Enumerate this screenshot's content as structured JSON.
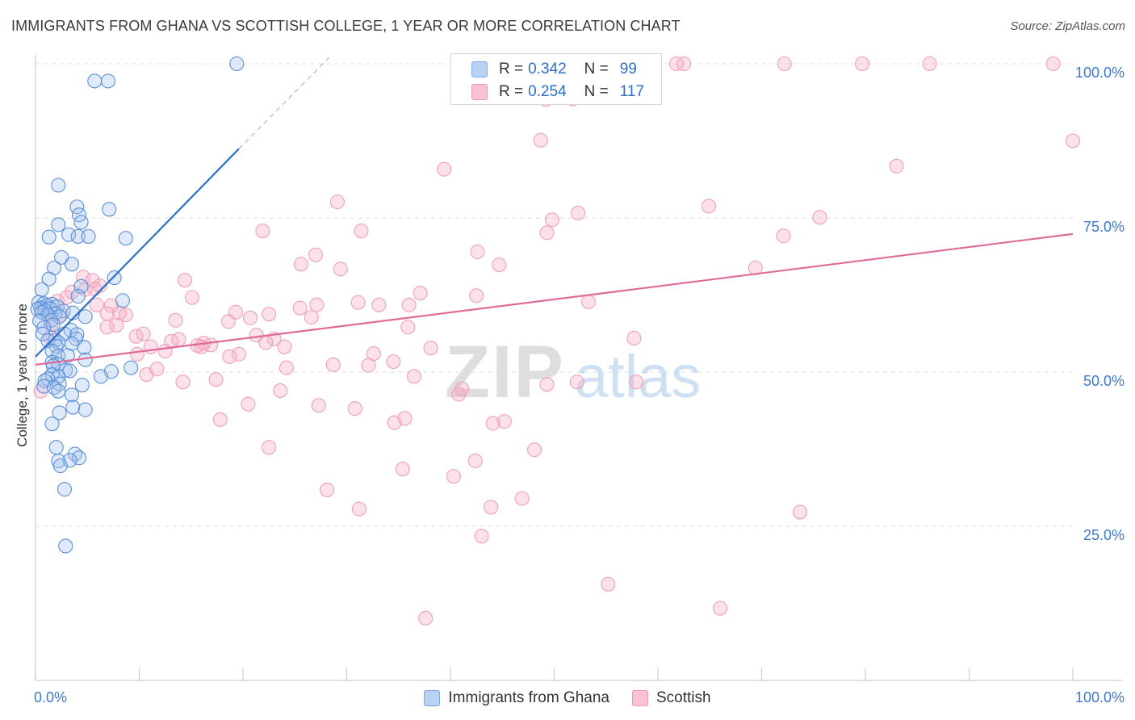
{
  "title": "IMMIGRANTS FROM GHANA VS SCOTTISH COLLEGE, 1 YEAR OR MORE CORRELATION CHART",
  "source": "Source: ZipAtlas.com",
  "watermark": {
    "zip": "ZIP",
    "atlas": "atlas"
  },
  "legend": {
    "rows": [
      {
        "r_label": "R =",
        "r_value": "0.342",
        "n_label": "N =",
        "n_value": "99"
      },
      {
        "r_label": "R =",
        "r_value": "0.254",
        "n_label": "N =",
        "n_value": "117"
      }
    ]
  },
  "colors": {
    "blue": "#2f6fc6",
    "pink": "#e06b98",
    "blue_fill": "#b8d2f5",
    "pink_fill": "#f9c3d3"
  },
  "chart_data": {
    "type": "scatter",
    "title": "IMMIGRANTS FROM GHANA VS SCOTTISH COLLEGE, 1 YEAR OR MORE CORRELATION CHART",
    "xlabel": "",
    "ylabel": "College, 1 year or more",
    "xlim": [
      0,
      100
    ],
    "ylim": [
      0,
      100
    ],
    "x_tick_labels": [
      "0.0%",
      "100.0%"
    ],
    "y_tick_labels": [
      "100.0%",
      "75.0%",
      "50.0%",
      "25.0%"
    ],
    "y_ticks": [
      100,
      75,
      50,
      25
    ],
    "grid": true,
    "series": [
      {
        "name": "Immigrants from Ghana",
        "color": "#2f6fc6",
        "r": 0.342,
        "n": 99,
        "trend": {
          "x0": 0,
          "y0": 52.5,
          "x1": 19.6,
          "y1": 86.2,
          "dash_to_x": 28.3,
          "dash_to_y": 101
        },
        "points": [
          [
            19.4,
            100
          ],
          [
            5.7,
            97.2
          ],
          [
            7.0,
            97.2
          ],
          [
            2.2,
            80.3
          ],
          [
            4.0,
            76.8
          ],
          [
            4.2,
            75.5
          ],
          [
            7.1,
            76.4
          ],
          [
            2.2,
            73.9
          ],
          [
            4.4,
            74.3
          ],
          [
            3.2,
            72.3
          ],
          [
            1.3,
            71.9
          ],
          [
            4.1,
            72.0
          ],
          [
            5.1,
            72.0
          ],
          [
            8.7,
            71.7
          ],
          [
            2.5,
            68.6
          ],
          [
            3.5,
            67.5
          ],
          [
            1.8,
            66.9
          ],
          [
            7.6,
            65.3
          ],
          [
            1.3,
            65.1
          ],
          [
            4.4,
            63.9
          ],
          [
            0.6,
            63.4
          ],
          [
            4.1,
            62.3
          ],
          [
            8.4,
            61.6
          ],
          [
            0.3,
            61.3
          ],
          [
            0.8,
            61.1
          ],
          [
            1.1,
            60.8
          ],
          [
            1.6,
            61.0
          ],
          [
            2.1,
            60.6
          ],
          [
            0.5,
            60.4
          ],
          [
            1.4,
            60.3
          ],
          [
            0.2,
            60.2
          ],
          [
            0.9,
            60.0
          ],
          [
            0.6,
            59.7
          ],
          [
            2.7,
            59.9
          ],
          [
            3.6,
            59.6
          ],
          [
            1.9,
            59.5
          ],
          [
            1.2,
            59.3
          ],
          [
            2.3,
            59.0
          ],
          [
            4.8,
            59.0
          ],
          [
            1.5,
            58.4
          ],
          [
            0.4,
            58.3
          ],
          [
            1.7,
            57.7
          ],
          [
            0.8,
            57.2
          ],
          [
            3.4,
            56.8
          ],
          [
            0.7,
            56.2
          ],
          [
            2.8,
            56.2
          ],
          [
            4.0,
            56.1
          ],
          [
            3.9,
            55.4
          ],
          [
            1.9,
            55.2
          ],
          [
            1.2,
            55.1
          ],
          [
            2.2,
            54.8
          ],
          [
            3.5,
            54.6
          ],
          [
            4.7,
            54.0
          ],
          [
            2.0,
            54.2
          ],
          [
            1.6,
            53.4
          ],
          [
            2.2,
            52.6
          ],
          [
            3.1,
            52.7
          ],
          [
            4.8,
            52.0
          ],
          [
            1.6,
            51.6
          ],
          [
            2.2,
            51.3
          ],
          [
            1.7,
            51.0
          ],
          [
            9.2,
            50.7
          ],
          [
            2.9,
            50.3
          ],
          [
            3.3,
            50.2
          ],
          [
            7.3,
            50.1
          ],
          [
            1.6,
            49.6
          ],
          [
            2.2,
            49.3
          ],
          [
            6.3,
            49.3
          ],
          [
            1.2,
            48.9
          ],
          [
            0.9,
            48.6
          ],
          [
            2.3,
            48.1
          ],
          [
            4.5,
            47.9
          ],
          [
            0.8,
            47.7
          ],
          [
            1.8,
            47.5
          ],
          [
            2.2,
            46.9
          ],
          [
            3.5,
            46.3
          ],
          [
            3.6,
            44.3
          ],
          [
            4.8,
            43.9
          ],
          [
            2.3,
            43.4
          ],
          [
            1.6,
            41.6
          ],
          [
            2.0,
            37.8
          ],
          [
            3.8,
            36.7
          ],
          [
            4.2,
            36.1
          ],
          [
            3.3,
            35.7
          ],
          [
            2.2,
            35.6
          ],
          [
            2.4,
            34.8
          ],
          [
            2.8,
            31.0
          ],
          [
            2.9,
            21.8
          ]
        ]
      },
      {
        "name": "Scottish",
        "color": "#e06b98",
        "r": 0.254,
        "n": 117,
        "trend": {
          "x0": 0,
          "y0": 51.2,
          "x1": 100,
          "y1": 72.4
        },
        "points": [
          [
            59.2,
            100
          ],
          [
            61.8,
            100
          ],
          [
            72.2,
            100
          ],
          [
            79.7,
            100
          ],
          [
            86.2,
            100
          ],
          [
            98.1,
            100
          ],
          [
            62.5,
            100
          ],
          [
            51.8,
            94.3
          ],
          [
            49.2,
            94.2
          ],
          [
            100.0,
            87.5
          ],
          [
            48.7,
            87.6
          ],
          [
            83.0,
            83.4
          ],
          [
            39.4,
            82.9
          ],
          [
            29.1,
            77.6
          ],
          [
            64.9,
            76.9
          ],
          [
            52.3,
            75.8
          ],
          [
            75.6,
            75.1
          ],
          [
            49.8,
            74.7
          ],
          [
            21.9,
            72.9
          ],
          [
            31.4,
            72.9
          ],
          [
            72.1,
            72.1
          ],
          [
            49.3,
            72.6
          ],
          [
            42.6,
            69.5
          ],
          [
            27.0,
            69.0
          ],
          [
            44.7,
            67.4
          ],
          [
            25.6,
            67.5
          ],
          [
            29.4,
            66.7
          ],
          [
            69.4,
            66.9
          ],
          [
            14.4,
            64.9
          ],
          [
            4.6,
            65.4
          ],
          [
            5.5,
            64.9
          ],
          [
            6.2,
            64.0
          ],
          [
            4.8,
            63.4
          ],
          [
            5.7,
            63.5
          ],
          [
            3.5,
            63.0
          ],
          [
            37.1,
            62.8
          ],
          [
            42.5,
            62.4
          ],
          [
            15.1,
            62.1
          ],
          [
            3.0,
            62.1
          ],
          [
            53.3,
            61.4
          ],
          [
            2.1,
            61.5
          ],
          [
            5.9,
            60.9
          ],
          [
            7.3,
            60.8
          ],
          [
            27.1,
            60.9
          ],
          [
            31.1,
            61.3
          ],
          [
            33.1,
            60.9
          ],
          [
            36.0,
            60.9
          ],
          [
            25.5,
            60.4
          ],
          [
            19.3,
            59.7
          ],
          [
            22.5,
            59.4
          ],
          [
            6.9,
            59.5
          ],
          [
            8.1,
            59.6
          ],
          [
            8.7,
            59.3
          ],
          [
            2.5,
            59.3
          ],
          [
            20.7,
            58.8
          ],
          [
            18.6,
            58.2
          ],
          [
            13.5,
            58.4
          ],
          [
            26.6,
            58.9
          ],
          [
            1.5,
            57.7
          ],
          [
            7.8,
            57.6
          ],
          [
            6.9,
            57.3
          ],
          [
            35.9,
            57.3
          ],
          [
            10.4,
            56.2
          ],
          [
            21.3,
            56.0
          ],
          [
            9.7,
            55.8
          ],
          [
            1.4,
            55.7
          ],
          [
            13.8,
            55.3
          ],
          [
            23.0,
            55.4
          ],
          [
            13.1,
            55.0
          ],
          [
            16.2,
            54.7
          ],
          [
            16.9,
            54.4
          ],
          [
            22.2,
            54.8
          ],
          [
            57.7,
            55.5
          ],
          [
            15.6,
            54.3
          ],
          [
            16.0,
            54.1
          ],
          [
            11.1,
            54.1
          ],
          [
            24.0,
            54.1
          ],
          [
            38.1,
            53.9
          ],
          [
            12.5,
            53.4
          ],
          [
            9.8,
            52.9
          ],
          [
            19.6,
            52.9
          ],
          [
            32.6,
            53.0
          ],
          [
            18.7,
            52.5
          ],
          [
            34.5,
            51.7
          ],
          [
            28.7,
            51.2
          ],
          [
            32.1,
            51.1
          ],
          [
            24.2,
            50.7
          ],
          [
            11.7,
            50.5
          ],
          [
            10.7,
            49.6
          ],
          [
            36.5,
            49.3
          ],
          [
            17.4,
            48.8
          ],
          [
            14.2,
            48.4
          ],
          [
            52.2,
            48.4
          ],
          [
            57.9,
            48.4
          ],
          [
            49.3,
            48.0
          ],
          [
            41.1,
            47.3
          ],
          [
            23.6,
            47.0
          ],
          [
            40.8,
            46.4
          ],
          [
            20.5,
            44.8
          ],
          [
            27.3,
            44.6
          ],
          [
            30.8,
            44.1
          ],
          [
            35.6,
            42.5
          ],
          [
            17.8,
            42.3
          ],
          [
            34.6,
            41.8
          ],
          [
            44.1,
            41.7
          ],
          [
            45.2,
            42.0
          ],
          [
            22.5,
            37.8
          ],
          [
            48.1,
            37.4
          ],
          [
            42.4,
            35.6
          ],
          [
            35.4,
            34.3
          ],
          [
            40.3,
            33.1
          ],
          [
            28.1,
            30.9
          ],
          [
            46.9,
            29.5
          ],
          [
            43.9,
            28.1
          ],
          [
            31.2,
            27.8
          ],
          [
            73.7,
            27.3
          ],
          [
            43.0,
            23.4
          ],
          [
            55.2,
            15.6
          ],
          [
            66.0,
            11.7
          ],
          [
            37.6,
            10.1
          ],
          [
            0.5,
            46.9
          ]
        ]
      }
    ]
  },
  "bottom_legend": {
    "blue_label": "Immigrants from Ghana",
    "pink_label": "Scottish"
  }
}
